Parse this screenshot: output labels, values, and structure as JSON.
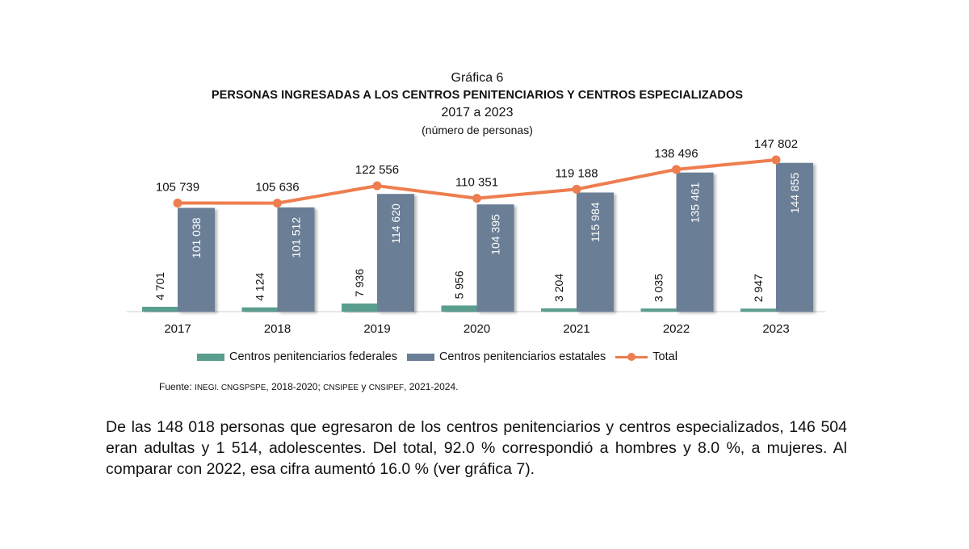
{
  "chart_data": {
    "type": "bar",
    "label": "Gráfica 6",
    "title": "PERSONAS INGRESADAS A LOS CENTROS PENITENCIARIOS Y CENTROS ESPECIALIZADOS",
    "subtitle": "2017 a 2023",
    "unit": "(número de personas)",
    "categories": [
      "2017",
      "2018",
      "2019",
      "2020",
      "2021",
      "2022",
      "2023"
    ],
    "series": [
      {
        "name": "Centros penitenciarios federales",
        "type": "bar",
        "color": "#5a9e8f",
        "values": [
          4701,
          4124,
          7936,
          5956,
          3204,
          3035,
          2947
        ],
        "labels": [
          "4 701",
          "4 124",
          "7 936",
          "5 956",
          "3 204",
          "3 035",
          "2 947"
        ]
      },
      {
        "name": "Centros penitenciarios estatales",
        "type": "bar",
        "color": "#6a7e96",
        "values": [
          101038,
          101512,
          114620,
          104395,
          115984,
          135461,
          144855
        ],
        "labels": [
          "101 038",
          "101 512",
          "114 620",
          "104 395",
          "115 984",
          "135 461",
          "144 855"
        ]
      },
      {
        "name": "Total",
        "type": "line",
        "color": "#ee7d4f",
        "values": [
          105739,
          105636,
          122556,
          110351,
          119188,
          138496,
          147802
        ],
        "labels": [
          "105 739",
          "105 636",
          "122 556",
          "110 351",
          "119 188",
          "138 496",
          "147 802"
        ]
      }
    ],
    "ylim": [
      0,
      150000
    ],
    "grid": false,
    "legend": "bottom"
  },
  "source": {
    "prefix": "Fuente:",
    "a": "INEGI. CNGSPSPE",
    "b": ", 2018-2020; ",
    "c": "CNSIPEE",
    "d": " y ",
    "e": "CNSIPEF",
    "f": ", 2021-2024."
  },
  "paragraph": "De las 148 018 personas que egresaron de los centros penitenciarios y centros especializados, 146 504 eran adultas y 1 514, adolescentes. Del total, 92.0 % correspondió a hombres y 8.0 %, a mujeres. Al comparar con 2022, esa cifra aumentó 16.0 % (ver gráfica 7)."
}
